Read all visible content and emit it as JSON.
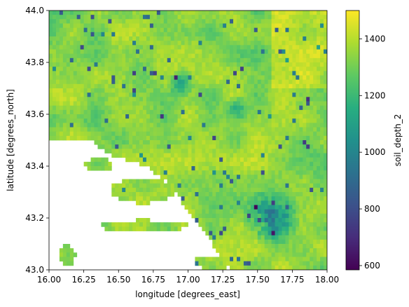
{
  "chart_data": {
    "type": "heatmap",
    "title": "",
    "xlabel": "longitude [degrees_east]",
    "ylabel": "latitude [degrees_north]",
    "colorbar_label": "soil_depth_2",
    "colormap": "viridis",
    "colorbar_range": [
      585,
      1500
    ],
    "xlim": [
      16.0,
      18.0
    ],
    "ylim": [
      43.0,
      44.0
    ],
    "x_ticks": [
      "16.00",
      "16.25",
      "16.50",
      "16.75",
      "17.00",
      "17.25",
      "17.50",
      "17.75",
      "18.00"
    ],
    "x_tick_values": [
      16.0,
      16.25,
      16.5,
      16.75,
      17.0,
      17.25,
      17.5,
      17.75,
      18.0
    ],
    "y_ticks": [
      "43.0",
      "43.2",
      "43.4",
      "43.6",
      "43.8",
      "44.0"
    ],
    "y_tick_values": [
      43.0,
      43.2,
      43.4,
      43.6,
      43.8,
      44.0
    ],
    "colorbar_ticks": [
      "600",
      "800",
      "1000",
      "1200",
      "1400"
    ],
    "colorbar_tick_values": [
      600,
      800,
      1000,
      1200,
      1400
    ],
    "grid": false,
    "typical_value_range": [
      1250,
      1420
    ],
    "missing_value_color": "#ffffff"
  }
}
